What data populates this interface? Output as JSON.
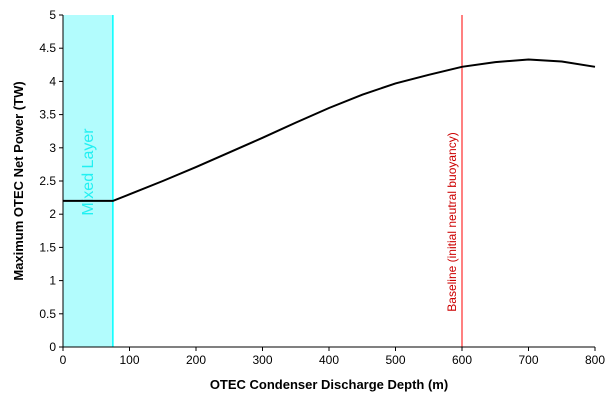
{
  "chart_data": {
    "type": "line",
    "xlabel": "OTEC Condenser Discharge Depth  (m)",
    "ylabel": "Maximum OTEC Net Power (TW)",
    "xlim": [
      0,
      800
    ],
    "ylim": [
      0,
      5
    ],
    "x_ticks": [
      "0",
      "100",
      "200",
      "300",
      "400",
      "500",
      "600",
      "700",
      "800"
    ],
    "y_ticks": [
      "0",
      "0.5",
      "1",
      "1.5",
      "2",
      "2.5",
      "3",
      "3.5",
      "4",
      "4.5",
      "5"
    ],
    "grid": false,
    "series": [
      {
        "name": "",
        "color": "#000000",
        "points": [
          [
            0,
            2.2
          ],
          [
            75,
            2.2
          ],
          [
            100,
            2.3
          ],
          [
            150,
            2.5
          ],
          [
            200,
            2.71
          ],
          [
            250,
            2.93
          ],
          [
            300,
            3.15
          ],
          [
            350,
            3.38
          ],
          [
            400,
            3.6
          ],
          [
            450,
            3.8
          ],
          [
            500,
            3.97
          ],
          [
            550,
            4.1
          ],
          [
            600,
            4.22
          ],
          [
            650,
            4.29
          ],
          [
            700,
            4.33
          ],
          [
            750,
            4.3
          ],
          [
            800,
            4.22
          ]
        ]
      }
    ],
    "annotations": {
      "mixed_layer": {
        "label": "Mixed Layer",
        "x_start": 0,
        "x_end": 75,
        "fill": "#b2fcfd",
        "edge": "#00ffff",
        "text_color": "#22f0f2"
      },
      "baseline": {
        "label": "Baseline (initial neutral buoyancy)",
        "x": 600,
        "color": "#ff0000",
        "text_color": "#cc0000"
      }
    }
  }
}
